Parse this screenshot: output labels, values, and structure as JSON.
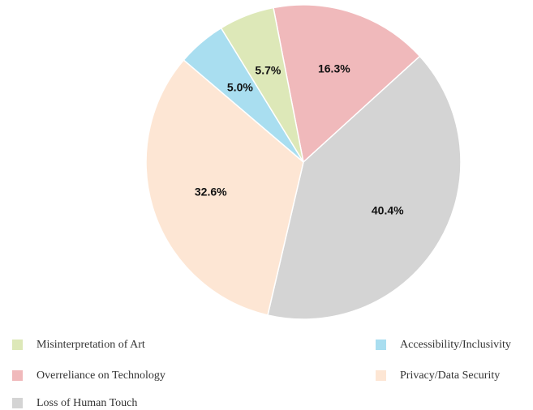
{
  "chart_data": {
    "type": "pie",
    "categories": [
      "Overreliance on Technology",
      "Loss of Human Touch",
      "Privacy/Data Security",
      "Accessibility/Inclusivity",
      "Misinterpretation of Art"
    ],
    "values": [
      16.3,
      40.4,
      32.6,
      5.0,
      5.7
    ],
    "value_labels": [
      "16.3%",
      "40.4%",
      "32.6%",
      "5.0%",
      "5.7%"
    ],
    "colors": [
      "#f0b9bb",
      "#d4d4d4",
      "#fde6d4",
      "#a9def0",
      "#dde8b8"
    ],
    "legend": "bottom"
  }
}
